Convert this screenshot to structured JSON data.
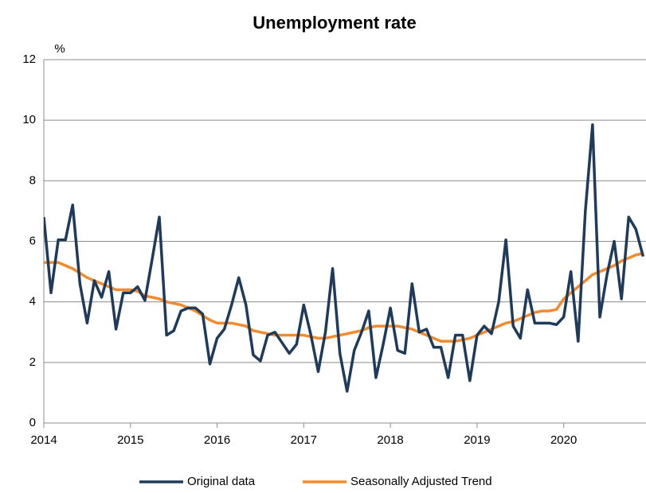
{
  "chart_data": {
    "type": "line",
    "title": "Unemployment rate",
    "y_unit_label": "%",
    "x": [
      2014,
      2014.083,
      2014.167,
      2014.25,
      2014.333,
      2014.417,
      2014.5,
      2014.583,
      2014.667,
      2014.75,
      2014.833,
      2014.917,
      2015,
      2015.083,
      2015.167,
      2015.25,
      2015.333,
      2015.417,
      2015.5,
      2015.583,
      2015.667,
      2015.75,
      2015.833,
      2015.917,
      2016,
      2016.083,
      2016.167,
      2016.25,
      2016.333,
      2016.417,
      2016.5,
      2016.583,
      2016.667,
      2016.75,
      2016.833,
      2016.917,
      2017,
      2017.083,
      2017.167,
      2017.25,
      2017.333,
      2017.417,
      2017.5,
      2017.583,
      2017.667,
      2017.75,
      2017.833,
      2017.917,
      2018,
      2018.083,
      2018.167,
      2018.25,
      2018.333,
      2018.417,
      2018.5,
      2018.583,
      2018.667,
      2018.75,
      2018.833,
      2018.917,
      2019,
      2019.083,
      2019.167,
      2019.25,
      2019.333,
      2019.417,
      2019.5,
      2019.583,
      2019.667,
      2019.75,
      2019.833,
      2019.917,
      2020,
      2020.083,
      2020.167,
      2020.25,
      2020.333,
      2020.417,
      2020.5,
      2020.583,
      2020.667,
      2020.75,
      2020.833,
      2020.917
    ],
    "series": [
      {
        "name": "Original data",
        "color": "#1f3b5c",
        "values": [
          6.8,
          4.3,
          6.05,
          6.05,
          7.2,
          4.6,
          3.3,
          4.7,
          4.15,
          5.0,
          3.1,
          4.3,
          4.3,
          4.5,
          4.05,
          5.4,
          6.8,
          2.9,
          3.05,
          3.7,
          3.8,
          3.8,
          3.6,
          1.95,
          2.8,
          3.1,
          3.9,
          4.8,
          3.9,
          2.25,
          2.05,
          2.9,
          3.0,
          2.65,
          2.3,
          2.6,
          3.9,
          2.9,
          1.7,
          3.0,
          5.1,
          2.3,
          1.05,
          2.4,
          3.0,
          3.7,
          1.5,
          2.6,
          3.8,
          2.4,
          2.3,
          4.6,
          3.0,
          3.1,
          2.5,
          2.5,
          1.5,
          2.9,
          2.9,
          1.4,
          2.9,
          3.2,
          2.95,
          4.0,
          6.05,
          3.2,
          2.8,
          4.4,
          3.3,
          3.3,
          3.3,
          3.25,
          3.5,
          5.0,
          2.7,
          7.0,
          9.85,
          3.5,
          4.9,
          6.0,
          4.1,
          6.8,
          6.4,
          5.5
        ]
      },
      {
        "name": "Seasonally Adjusted Trend",
        "color": "#f28a2e",
        "values": [
          5.3,
          5.3,
          5.3,
          5.2,
          5.1,
          4.95,
          4.8,
          4.7,
          4.6,
          4.5,
          4.4,
          4.4,
          4.4,
          4.35,
          4.2,
          4.15,
          4.1,
          4.0,
          3.95,
          3.9,
          3.8,
          3.7,
          3.55,
          3.4,
          3.3,
          3.3,
          3.3,
          3.25,
          3.2,
          3.05,
          3.0,
          2.95,
          2.9,
          2.9,
          2.9,
          2.9,
          2.9,
          2.85,
          2.8,
          2.8,
          2.85,
          2.9,
          2.95,
          3.0,
          3.05,
          3.15,
          3.2,
          3.2,
          3.2,
          3.2,
          3.15,
          3.1,
          3.0,
          2.9,
          2.8,
          2.7,
          2.7,
          2.7,
          2.75,
          2.8,
          2.9,
          3.0,
          3.1,
          3.2,
          3.3,
          3.35,
          3.45,
          3.55,
          3.65,
          3.7,
          3.7,
          3.75,
          4.1,
          4.3,
          4.5,
          4.7,
          4.9,
          5.0,
          5.1,
          5.2,
          5.35,
          5.45,
          5.55,
          5.6
        ]
      }
    ],
    "xlim": [
      2014,
      2020.95
    ],
    "xticks": [
      2014,
      2015,
      2016,
      2017,
      2018,
      2019,
      2020
    ],
    "ylim": [
      0,
      12
    ],
    "yticks": [
      0,
      2,
      4,
      6,
      8,
      10,
      12
    ],
    "grid": true,
    "legend": "bottom"
  }
}
